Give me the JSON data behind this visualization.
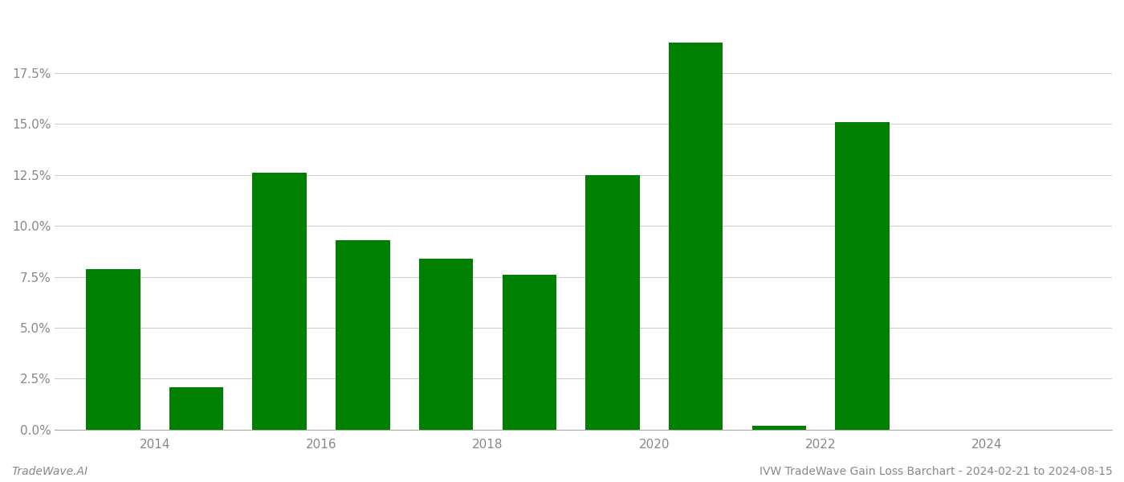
{
  "years": [
    2013,
    2014,
    2015,
    2016,
    2017,
    2018,
    2019,
    2020,
    2021,
    2022,
    2023
  ],
  "values": [
    0.079,
    0.021,
    0.126,
    0.093,
    0.084,
    0.076,
    0.125,
    0.19,
    0.002,
    0.151,
    0.0
  ],
  "bar_color": "#008000",
  "background_color": "#ffffff",
  "grid_color": "#cccccc",
  "axis_color": "#aaaaaa",
  "tick_label_color": "#888888",
  "ylim": [
    0,
    0.205
  ],
  "yticks": [
    0.0,
    0.025,
    0.05,
    0.075,
    0.1,
    0.125,
    0.15,
    0.175
  ],
  "ytick_labels": [
    "0.0%",
    "2.5%",
    "5.0%",
    "7.5%",
    "10.0%",
    "12.5%",
    "15.0%",
    "17.5%"
  ],
  "xtick_labels": [
    "2014",
    "2016",
    "2018",
    "2020",
    "2022",
    "2024"
  ],
  "xtick_positions": [
    2013.5,
    2015.5,
    2017.5,
    2019.5,
    2021.5,
    2023.5
  ],
  "footer_left": "TradeWave.AI",
  "footer_right": "IVW TradeWave Gain Loss Barchart - 2024-02-21 to 2024-08-15",
  "tick_fontsize": 11,
  "footer_fontsize": 10,
  "bar_width": 0.65
}
